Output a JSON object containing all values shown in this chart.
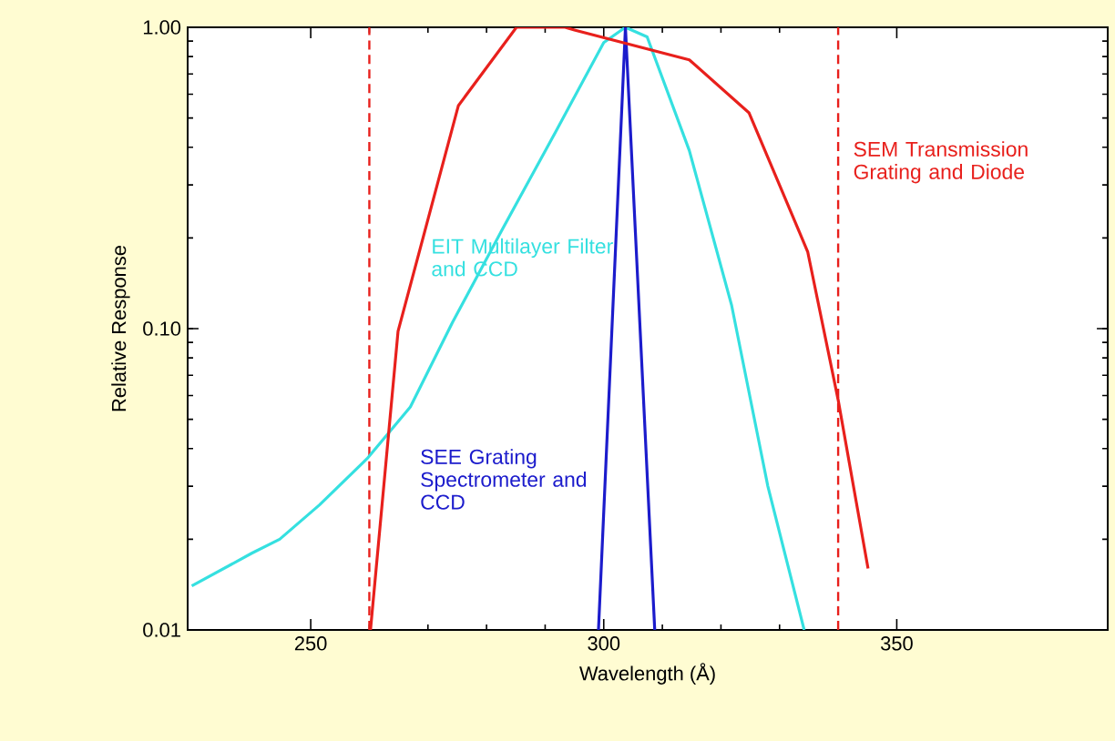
{
  "chart_data": {
    "type": "line",
    "xlabel": "Wavelength (Å)",
    "ylabel": "Relative Response",
    "log": "y",
    "xlim": [
      229,
      386
    ],
    "ylim": [
      0.01,
      1.0
    ],
    "xticks": [
      250,
      300,
      350
    ],
    "yticks": [
      {
        "value": 0.01,
        "label": "0.01"
      },
      {
        "value": 0.1,
        "label": "0.10"
      },
      {
        "value": 1.0,
        "label": "1.00"
      }
    ],
    "grid": false,
    "marker": "none",
    "line_style": "solid",
    "series": [
      {
        "name": "EIT Multilayer Filter and CCD",
        "color": "#35e0e0",
        "x": [
          229.7,
          240,
          244.7,
          251.5,
          259.6,
          267,
          274.2,
          282.5,
          291.8,
          300,
          303.7,
          307.4,
          314.6,
          321.8,
          328,
          334.2
        ],
        "values": [
          0.014,
          0.018,
          0.02,
          0.026,
          0.037,
          0.055,
          0.105,
          0.21,
          0.45,
          0.89,
          1.0,
          0.93,
          0.39,
          0.12,
          0.03,
          0.01
        ]
      },
      {
        "name": "SEE Grating Spectrometer and CCD",
        "color": "#1c1ccc",
        "x": [
          299.1,
          303.7,
          308.7
        ],
        "values": [
          0.01,
          1.0,
          0.01
        ]
      },
      {
        "name": "SEM Transmission Grating and Diode",
        "color": "#e8201c",
        "x": [
          260.2,
          264.9,
          275.2,
          285.1,
          293.4,
          295,
          314.6,
          324.8,
          334.8,
          340,
          345.1
        ],
        "values": [
          0.01,
          0.098,
          0.55,
          1.0,
          1.0,
          0.98,
          0.78,
          0.52,
          0.18,
          0.058,
          0.016
        ]
      }
    ],
    "ref_lines": [
      {
        "axis": "x",
        "value": 260,
        "color": "#e8201c",
        "line_style": "dashed"
      },
      {
        "axis": "x",
        "value": 340,
        "color": "#e8201c",
        "line_style": "dashed"
      }
    ]
  }
}
